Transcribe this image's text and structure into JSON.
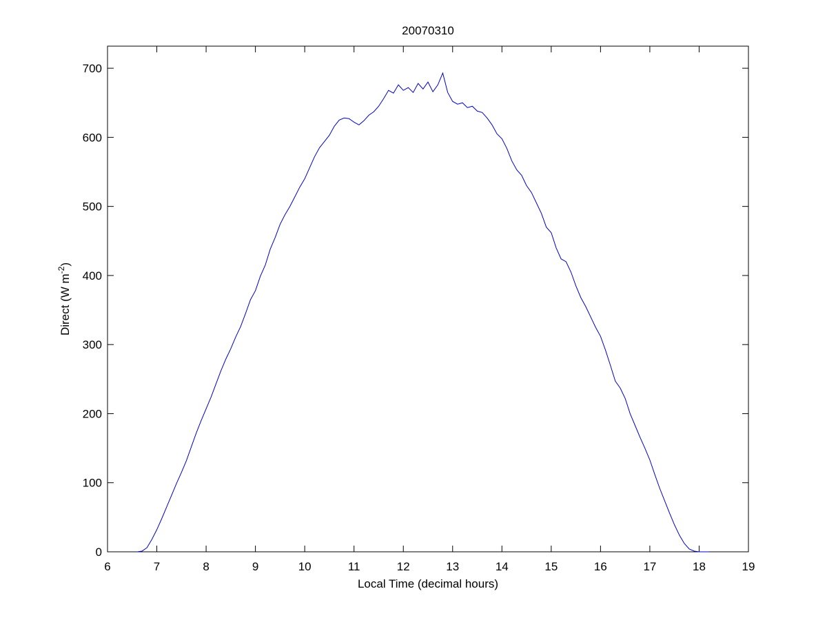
{
  "chart_data": {
    "type": "line",
    "title": "20070310",
    "xlabel": "Local Time (decimal hours)",
    "ylabel": {
      "text": "Direct (W m",
      "superscript": "-2",
      "close": ")"
    },
    "color": "#0000cc",
    "x": [
      6.6,
      6.7,
      6.8,
      6.9,
      7.0,
      7.1,
      7.2,
      7.3,
      7.4,
      7.5,
      7.6,
      7.7,
      7.8,
      7.9,
      8.0,
      8.1,
      8.2,
      8.3,
      8.4,
      8.5,
      8.6,
      8.7,
      8.8,
      8.9,
      9.0,
      9.1,
      9.2,
      9.3,
      9.4,
      9.5,
      9.6,
      9.7,
      9.8,
      9.9,
      10.0,
      10.1,
      10.2,
      10.3,
      10.4,
      10.5,
      10.6,
      10.7,
      10.8,
      10.9,
      11.0,
      11.1,
      11.2,
      11.3,
      11.4,
      11.5,
      11.6,
      11.7,
      11.8,
      11.9,
      12.0,
      12.1,
      12.2,
      12.3,
      12.4,
      12.5,
      12.6,
      12.7,
      12.8,
      12.9,
      13.0,
      13.1,
      13.2,
      13.3,
      13.4,
      13.5,
      13.6,
      13.7,
      13.8,
      13.9,
      14.0,
      14.1,
      14.2,
      14.3,
      14.4,
      14.5,
      14.6,
      14.7,
      14.8,
      14.9,
      15.0,
      15.1,
      15.2,
      15.3,
      15.4,
      15.5,
      15.6,
      15.7,
      15.8,
      15.9,
      16.0,
      16.1,
      16.2,
      16.3,
      16.4,
      16.5,
      16.6,
      16.7,
      16.8,
      16.9,
      17.0,
      17.1,
      17.2,
      17.3,
      17.4,
      17.5,
      17.6,
      17.7,
      17.8,
      17.9,
      18.0,
      18.1,
      18.2
    ],
    "values": [
      0,
      1,
      6,
      18,
      32,
      48,
      65,
      82,
      99,
      115,
      132,
      152,
      172,
      190,
      207,
      224,
      243,
      262,
      279,
      294,
      311,
      326,
      345,
      365,
      378,
      399,
      415,
      438,
      455,
      474,
      488,
      500,
      514,
      528,
      540,
      556,
      572,
      585,
      594,
      603,
      616,
      625,
      628,
      627,
      622,
      618,
      624,
      632,
      637,
      645,
      656,
      668,
      664,
      676,
      668,
      672,
      665,
      678,
      670,
      680,
      666,
      676,
      693,
      665,
      652,
      648,
      650,
      643,
      645,
      638,
      636,
      628,
      618,
      605,
      598,
      584,
      566,
      553,
      545,
      530,
      520,
      505,
      490,
      470,
      462,
      440,
      424,
      420,
      405,
      385,
      368,
      355,
      340,
      325,
      312,
      292,
      270,
      247,
      237,
      222,
      200,
      183,
      166,
      150,
      133,
      112,
      92,
      74,
      56,
      39,
      24,
      12,
      4,
      1,
      0,
      0,
      0
    ],
    "xlim": [
      6,
      19
    ],
    "xticks": [
      6,
      7,
      8,
      9,
      10,
      11,
      12,
      13,
      14,
      15,
      16,
      17,
      18,
      19
    ],
    "ylim": [
      0,
      732
    ],
    "yticks": [
      0,
      100,
      200,
      300,
      400,
      500,
      600,
      700
    ]
  }
}
